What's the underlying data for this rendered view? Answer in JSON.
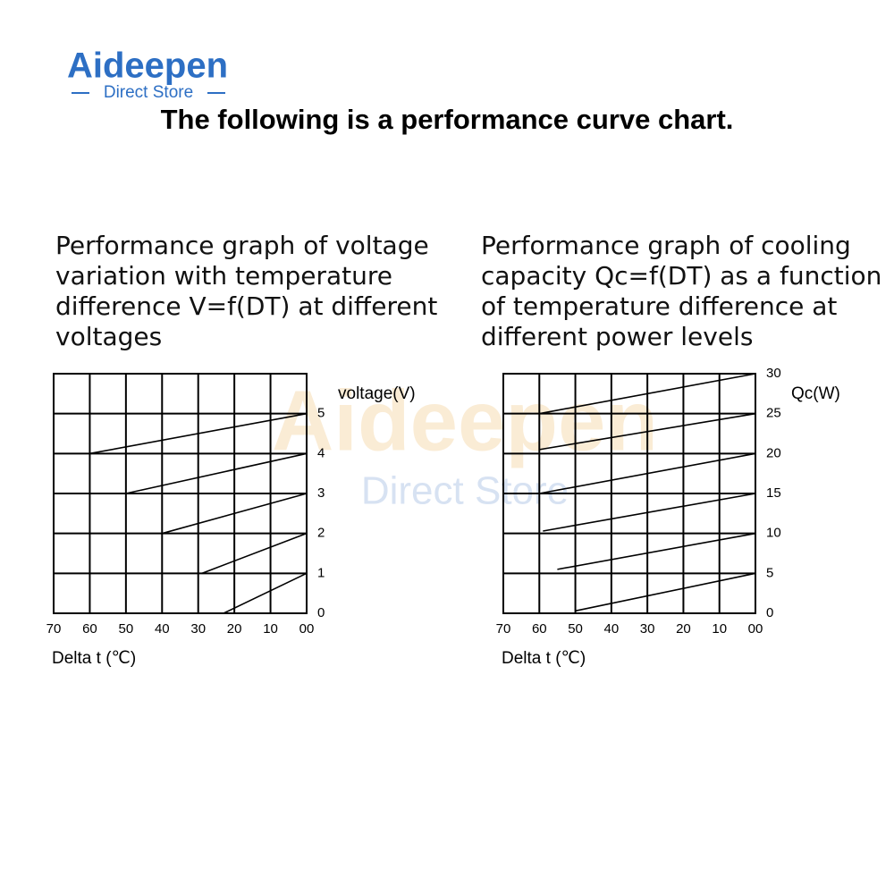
{
  "header": {
    "logo": "Aideepen",
    "tagline": "Direct Store",
    "title": "The following is a performance curve chart."
  },
  "chart_data": [
    {
      "type": "line",
      "title": "Performance graph of voltage variation with temperature difference V=f(DT) at different voltages",
      "xlabel": "Delta t (℃)",
      "ylabel": "voltage(V)",
      "color": "#000000",
      "grid": true,
      "xlim": [
        70,
        0
      ],
      "xticks": [
        70,
        60,
        50,
        40,
        30,
        20,
        10,
        {
          "value": 0,
          "label": "00"
        }
      ],
      "ylim": [
        0,
        6
      ],
      "yticks": [
        0,
        1,
        2,
        3,
        4,
        5
      ],
      "series": [
        {
          "x": [
            60,
            0
          ],
          "values": [
            4,
            5
          ]
        },
        {
          "x": [
            50,
            0
          ],
          "values": [
            3,
            4
          ]
        },
        {
          "x": [
            40,
            0
          ],
          "values": [
            2,
            3
          ]
        },
        {
          "x": [
            29,
            0
          ],
          "values": [
            1,
            2
          ]
        },
        {
          "x": [
            23,
            0
          ],
          "values": [
            0,
            1
          ]
        }
      ]
    },
    {
      "type": "line",
      "title": "Performance graph of cooling capacity Qc=f(DT) as a function of temperature difference at different power levels",
      "xlabel": "Delta t (℃)",
      "ylabel": "Qc(W)",
      "color": "#000000",
      "grid": true,
      "xlim": [
        70,
        0
      ],
      "xticks": [
        70,
        60,
        50,
        40,
        30,
        20,
        10,
        {
          "value": 0,
          "label": "00"
        }
      ],
      "ylim": [
        0,
        30
      ],
      "yticks": [
        0,
        5,
        10,
        15,
        20,
        25,
        30
      ],
      "series": [
        {
          "x": [
            60,
            0
          ],
          "values": [
            25,
            30
          ]
        },
        {
          "x": [
            60,
            0
          ],
          "values": [
            20.5,
            25
          ]
        },
        {
          "x": [
            60,
            0
          ],
          "values": [
            15,
            20
          ]
        },
        {
          "x": [
            59,
            0
          ],
          "values": [
            10.3,
            15
          ]
        },
        {
          "x": [
            55,
            0
          ],
          "values": [
            5.5,
            10
          ]
        },
        {
          "x": [
            50,
            0
          ],
          "values": [
            0.3,
            5
          ]
        }
      ]
    }
  ]
}
